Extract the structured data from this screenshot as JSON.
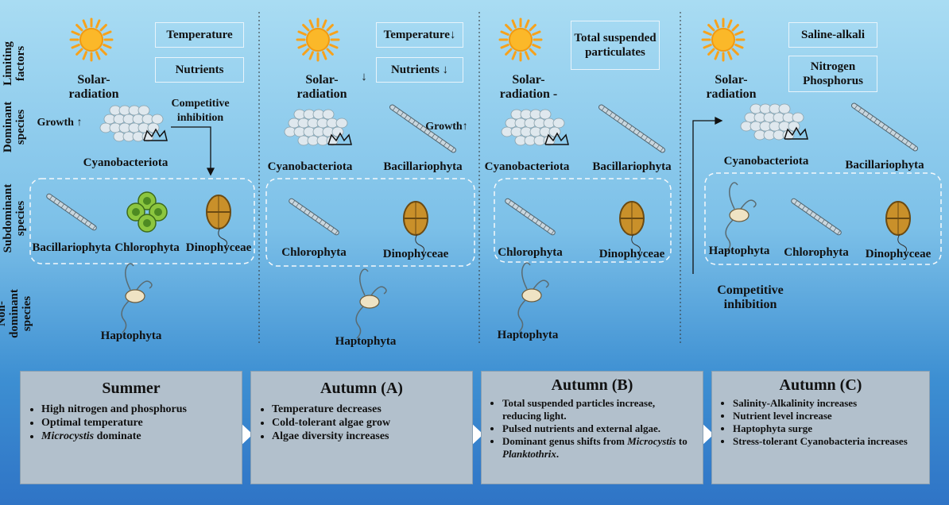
{
  "row_labels": [
    "Limiting factors",
    "Dominant species",
    "Subdominant species",
    "Non-dominant species"
  ],
  "panels": [
    {
      "sun_label": "Solar-radiation",
      "factors": [
        "Temperature",
        "Nutrients"
      ],
      "dominant": [
        "Cyanobacteriota"
      ],
      "notes": [
        "Growth ↑",
        "Competitive inhibition"
      ],
      "subdominant": [
        "Bacillariophyta",
        "Chlorophyta",
        "Dinophyceae"
      ],
      "non_dominant": [
        "Haptophyta"
      ]
    },
    {
      "sun_label": "Solar-radiation",
      "sun_arrow": "↓",
      "factors": [
        "Temperature↓",
        "Nutrients ↓"
      ],
      "dominant": [
        "Cyanobacteriota",
        "Bacillariophyta"
      ],
      "notes": [
        "Growth↑"
      ],
      "subdominant": [
        "Chlorophyta",
        "Dinophyceae"
      ],
      "non_dominant": [
        "Haptophyta"
      ]
    },
    {
      "sun_label": "Solar-radiation -",
      "factors": [
        "Total suspended particulates"
      ],
      "dominant": [
        "Cyanobacteriota",
        "Bacillariophyta"
      ],
      "notes": [],
      "subdominant": [
        "Chlorophyta",
        "Dinophyceae"
      ],
      "non_dominant": [
        "Haptophyta"
      ]
    },
    {
      "sun_label": "Solar-radiation",
      "factors": [
        "Saline-alkali",
        "Nitrogen Phosphorus"
      ],
      "dominant": [
        "Cyanobacteriota",
        "Bacillariophyta"
      ],
      "notes": [
        "Competitive inhibition"
      ],
      "subdominant": [
        "Haptophyta",
        "Chlorophyta",
        "Dinophyceae"
      ],
      "non_dominant": []
    }
  ],
  "seasons": [
    {
      "title": "Summer",
      "bullets": [
        "High nitrogen and phosphorus",
        "Optimal temperature",
        [
          {
            "text": "Microcystis",
            "italic": true
          },
          {
            "text": " dominate"
          }
        ]
      ]
    },
    {
      "title": "Autumn (A)",
      "bullets": [
        "Temperature decreases",
        "Cold-tolerant algae grow",
        "Algae diversity increases"
      ]
    },
    {
      "title": "Autumn (B)",
      "bullets": [
        "Total suspended particles increase, reducing light.",
        "Pulsed nutrients and external algae.",
        [
          {
            "text": "Dominant genus shifts from "
          },
          {
            "text": "Microcystis",
            "italic": true
          },
          {
            "text": " to "
          },
          {
            "text": "Planktothrix",
            "italic": true
          },
          {
            "text": "."
          }
        ]
      ]
    },
    {
      "title": "Autumn (C)",
      "bullets": [
        "Salinity-Alkalinity increases",
        "Nutrient level increase",
        "Haptophyta surge",
        "Stress-tolerant Cyanobacteria increases"
      ]
    }
  ]
}
